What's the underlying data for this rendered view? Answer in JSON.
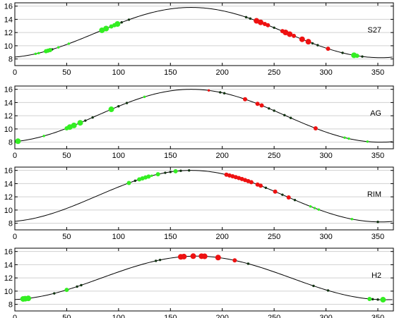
{
  "chart_data": [
    {
      "type": "line",
      "panel_label": "S27",
      "xlim": [
        0,
        365
      ],
      "ylim": [
        7,
        16.5
      ],
      "xticks": [
        "0",
        "50",
        "100",
        "150",
        "200",
        "250",
        "300",
        "350"
      ],
      "yticks": [
        "8",
        "10",
        "12",
        "14",
        "16"
      ],
      "curve": {
        "mean": 12.0,
        "amplitude": 3.8,
        "peak_day": 170,
        "color": "#000000"
      },
      "green_points": [
        {
          "x": 20,
          "size": "small"
        },
        {
          "x": 23,
          "size": "small"
        },
        {
          "x": 30,
          "size": "medium"
        },
        {
          "x": 32,
          "size": "medium"
        },
        {
          "x": 34,
          "size": "medium"
        },
        {
          "x": 42,
          "size": "small"
        },
        {
          "x": 52,
          "size": "small"
        },
        {
          "x": 84,
          "size": "large"
        },
        {
          "x": 88,
          "size": "large"
        },
        {
          "x": 93,
          "size": "medium"
        },
        {
          "x": 96,
          "size": "medium"
        },
        {
          "x": 99,
          "size": "large"
        },
        {
          "x": 327,
          "size": "large"
        },
        {
          "x": 330,
          "size": "medium"
        }
      ],
      "red_points": [
        {
          "x": 233,
          "size": "large"
        },
        {
          "x": 237,
          "size": "large"
        },
        {
          "x": 241,
          "size": "medium"
        },
        {
          "x": 244,
          "size": "medium"
        },
        {
          "x": 258,
          "size": "medium"
        },
        {
          "x": 261,
          "size": "large"
        },
        {
          "x": 265,
          "size": "large"
        },
        {
          "x": 269,
          "size": "medium"
        },
        {
          "x": 277,
          "size": "large"
        },
        {
          "x": 283,
          "size": "large"
        },
        {
          "x": 302,
          "size": "medium"
        }
      ],
      "dark_points": [
        {
          "x": 36,
          "size": "small"
        },
        {
          "x": 103,
          "size": "small"
        },
        {
          "x": 110,
          "size": "small"
        },
        {
          "x": 223,
          "size": "small"
        },
        {
          "x": 227,
          "size": "small"
        },
        {
          "x": 250,
          "size": "small"
        },
        {
          "x": 287,
          "size": "small"
        },
        {
          "x": 292,
          "size": "small"
        },
        {
          "x": 316,
          "size": "small"
        },
        {
          "x": 335,
          "size": "small"
        }
      ]
    },
    {
      "type": "line",
      "panel_label": "AG",
      "xlim": [
        0,
        365
      ],
      "ylim": [
        7,
        16.5
      ],
      "xticks": [
        "0",
        "50",
        "100",
        "150",
        "200",
        "250",
        "300",
        "350"
      ],
      "yticks": [
        "8",
        "10",
        "12",
        "14",
        "16"
      ],
      "curve": {
        "mean": 12.0,
        "amplitude": 4.0,
        "peak_day": 170,
        "color": "#000000"
      },
      "green_points": [
        {
          "x": 3,
          "size": "large"
        },
        {
          "x": 28,
          "size": "small"
        },
        {
          "x": 50,
          "size": "medium"
        },
        {
          "x": 53,
          "size": "large"
        },
        {
          "x": 57,
          "size": "large"
        },
        {
          "x": 63,
          "size": "large"
        },
        {
          "x": 93,
          "size": "large"
        },
        {
          "x": 125,
          "size": "small"
        },
        {
          "x": 318,
          "size": "small"
        },
        {
          "x": 322,
          "size": "small"
        },
        {
          "x": 340,
          "size": "small"
        }
      ],
      "red_points": [
        {
          "x": 187,
          "size": "small"
        },
        {
          "x": 222,
          "size": "medium"
        },
        {
          "x": 234,
          "size": "medium"
        },
        {
          "x": 238,
          "size": "medium"
        },
        {
          "x": 290,
          "size": "medium"
        }
      ],
      "dark_points": [
        {
          "x": 68,
          "size": "small"
        },
        {
          "x": 75,
          "size": "small"
        },
        {
          "x": 100,
          "size": "small"
        },
        {
          "x": 108,
          "size": "small"
        },
        {
          "x": 198,
          "size": "small"
        },
        {
          "x": 202,
          "size": "small"
        },
        {
          "x": 245,
          "size": "small"
        },
        {
          "x": 250,
          "size": "small"
        },
        {
          "x": 260,
          "size": "small"
        },
        {
          "x": 266,
          "size": "small"
        }
      ]
    },
    {
      "type": "line",
      "panel_label": "RIM",
      "xlim": [
        0,
        365
      ],
      "ylim": [
        7,
        16.5
      ],
      "xticks": [
        "0",
        "50",
        "100",
        "150",
        "200",
        "250",
        "300",
        "350"
      ],
      "yticks": [
        "8",
        "10",
        "12",
        "14",
        "16"
      ],
      "curve": {
        "mean": 12.1,
        "amplitude": 3.9,
        "peak_day": 170,
        "color": "#000000"
      },
      "green_points": [
        {
          "x": 110,
          "size": "medium"
        },
        {
          "x": 120,
          "size": "medium"
        },
        {
          "x": 123,
          "size": "medium"
        },
        {
          "x": 126,
          "size": "medium"
        },
        {
          "x": 129,
          "size": "medium"
        },
        {
          "x": 132,
          "size": "small"
        },
        {
          "x": 138,
          "size": "medium"
        },
        {
          "x": 155,
          "size": "medium"
        },
        {
          "x": 285,
          "size": "small"
        },
        {
          "x": 289,
          "size": "small"
        },
        {
          "x": 293,
          "size": "small"
        },
        {
          "x": 325,
          "size": "small"
        }
      ],
      "red_points": [
        {
          "x": 204,
          "size": "medium"
        },
        {
          "x": 207,
          "size": "medium"
        },
        {
          "x": 210,
          "size": "medium"
        },
        {
          "x": 213,
          "size": "medium"
        },
        {
          "x": 216,
          "size": "medium"
        },
        {
          "x": 219,
          "size": "medium"
        },
        {
          "x": 222,
          "size": "medium"
        },
        {
          "x": 225,
          "size": "medium"
        },
        {
          "x": 228,
          "size": "medium"
        },
        {
          "x": 234,
          "size": "medium"
        },
        {
          "x": 237,
          "size": "medium"
        },
        {
          "x": 251,
          "size": "medium"
        },
        {
          "x": 264,
          "size": "medium"
        }
      ],
      "dark_points": [
        {
          "x": 116,
          "size": "small"
        },
        {
          "x": 145,
          "size": "small"
        },
        {
          "x": 150,
          "size": "small"
        },
        {
          "x": 160,
          "size": "small"
        },
        {
          "x": 168,
          "size": "small"
        },
        {
          "x": 242,
          "size": "small"
        },
        {
          "x": 258,
          "size": "small"
        },
        {
          "x": 270,
          "size": "small"
        },
        {
          "x": 350,
          "size": "small"
        }
      ]
    },
    {
      "type": "line",
      "panel_label": "H2",
      "xlim": [
        0,
        365
      ],
      "ylim": [
        7,
        16.5
      ],
      "xticks": [
        "0",
        "50",
        "100",
        "150",
        "200",
        "250",
        "300",
        "350"
      ],
      "yticks": [
        "8",
        "10",
        "12",
        "14",
        "16"
      ],
      "curve": {
        "mean": 12.0,
        "amplitude": 3.3,
        "peak_day": 175,
        "color": "#000000"
      },
      "green_points": [
        {
          "x": 8,
          "size": "large"
        },
        {
          "x": 10,
          "size": "large"
        },
        {
          "x": 13,
          "size": "large"
        },
        {
          "x": 50,
          "size": "medium"
        },
        {
          "x": 342,
          "size": "medium"
        },
        {
          "x": 355,
          "size": "large"
        }
      ],
      "red_points": [
        {
          "x": 160,
          "size": "large"
        },
        {
          "x": 163,
          "size": "large"
        },
        {
          "x": 172,
          "size": "large"
        },
        {
          "x": 180,
          "size": "large"
        },
        {
          "x": 183,
          "size": "large"
        },
        {
          "x": 196,
          "size": "large"
        },
        {
          "x": 212,
          "size": "medium"
        }
      ],
      "dark_points": [
        {
          "x": 38,
          "size": "small"
        },
        {
          "x": 60,
          "size": "small"
        },
        {
          "x": 64,
          "size": "small"
        },
        {
          "x": 136,
          "size": "small"
        },
        {
          "x": 140,
          "size": "small"
        },
        {
          "x": 225,
          "size": "small"
        },
        {
          "x": 288,
          "size": "small"
        },
        {
          "x": 302,
          "size": "small"
        },
        {
          "x": 345,
          "size": "small"
        },
        {
          "x": 350,
          "size": "small"
        }
      ]
    }
  ],
  "colors": {
    "green": "#33ee22",
    "red": "#ee1111",
    "dark": "#113311",
    "grid": "#d0d0d0",
    "axis": "#000000"
  }
}
